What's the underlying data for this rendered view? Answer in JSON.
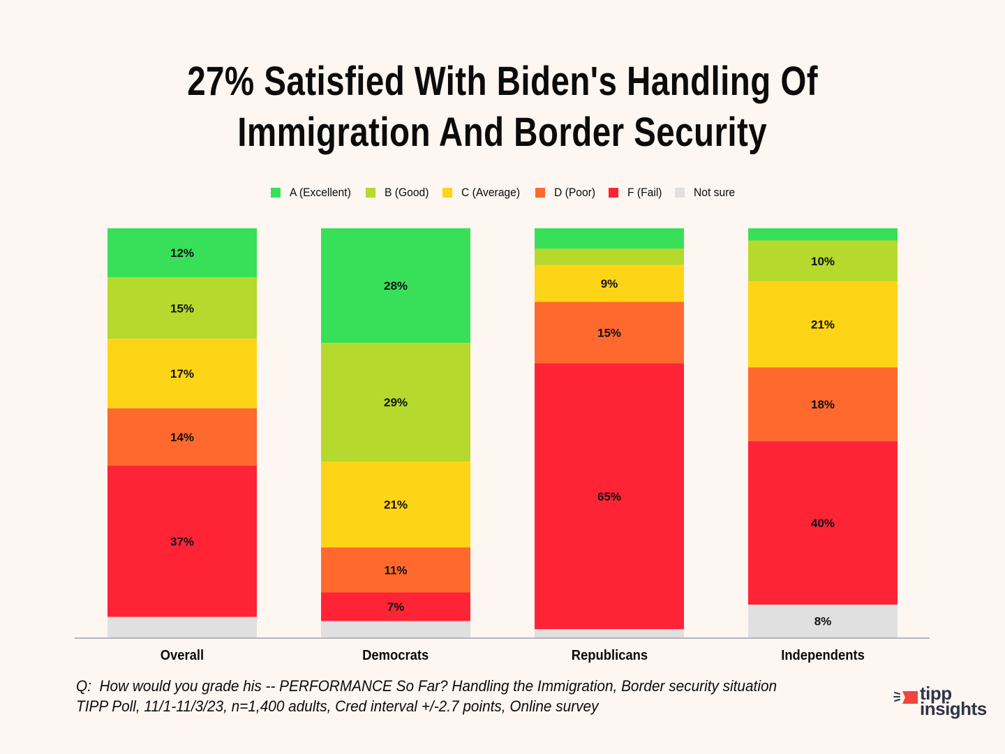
{
  "title_lines": [
    "27% Satisfied With Biden's Handling Of",
    "Immigration And Border Security"
  ],
  "chart_data": {
    "type": "bar",
    "stacked": true,
    "title": "27% Satisfied With Biden's Handling Of Immigration And Border Security",
    "xlabel": "",
    "ylabel": "",
    "ylim": [
      0,
      100
    ],
    "unit": "%",
    "grid": false,
    "legend_position": "top",
    "categories": [
      "Overall",
      "Democrats",
      "Republicans",
      "Independents"
    ],
    "series": [
      {
        "name": "A (Excellent)",
        "color": "#38E05A",
        "values": [
          12,
          28,
          5,
          3
        ],
        "labels": [
          "12%",
          "28%",
          "",
          ""
        ]
      },
      {
        "name": "B (Good)",
        "color": "#B5D92C",
        "values": [
          15,
          29,
          4,
          10
        ],
        "labels": [
          "15%",
          "29%",
          "",
          "10%"
        ]
      },
      {
        "name": "C (Average)",
        "color": "#FED516",
        "values": [
          17,
          21,
          9,
          21
        ],
        "labels": [
          "17%",
          "21%",
          "9%",
          "21%"
        ]
      },
      {
        "name": "D (Poor)",
        "color": "#FF692E",
        "values": [
          14,
          11,
          15,
          18
        ],
        "labels": [
          "14%",
          "11%",
          "15%",
          "18%"
        ]
      },
      {
        "name": "F (Fail)",
        "color": "#FE2436",
        "values": [
          37,
          7,
          65,
          40
        ],
        "labels": [
          "37%",
          "7%",
          "65%",
          "40%"
        ]
      },
      {
        "name": "Not sure",
        "color": "#E0E0E0",
        "values": [
          5,
          4,
          2,
          8
        ],
        "labels": [
          "",
          "",
          "",
          "8%"
        ]
      }
    ]
  },
  "footer": {
    "question": "Q:  How would you grade his -- PERFORMANCE So Far? Handling the Immigration, Border security situation",
    "source": "TIPP Poll, 11/1-11/3/23, n=1,400 adults, Cred interval +/-2.7 points, Online survey"
  },
  "logo": {
    "line1": "tipp",
    "line2": "insights",
    "accent": "#F0443F",
    "text_color": "#2E3547"
  }
}
